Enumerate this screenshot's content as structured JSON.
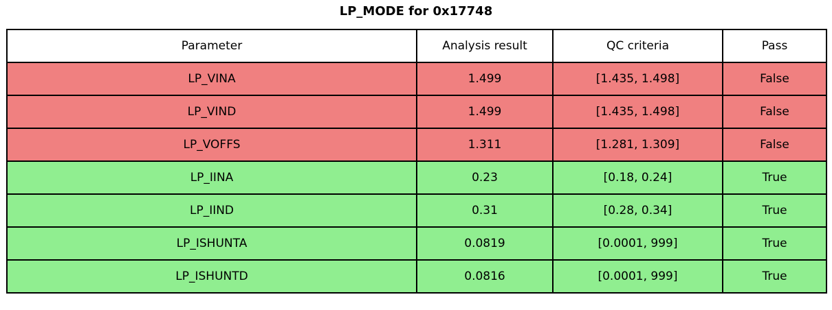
{
  "title": "LP_MODE for 0x17748",
  "colors": {
    "fail_row": "#f08080",
    "pass_row": "#90ee90",
    "header_bg": "#ffffff",
    "border": "#000000",
    "text": "#000000"
  },
  "table": {
    "headers": [
      "Parameter",
      "Analysis result",
      "QC criteria",
      "Pass"
    ],
    "rows": [
      {
        "parameter": "LP_VINA",
        "result": "1.499",
        "qc": "[1.435, 1.498]",
        "pass": "False"
      },
      {
        "parameter": "LP_VIND",
        "result": "1.499",
        "qc": "[1.435, 1.498]",
        "pass": "False"
      },
      {
        "parameter": "LP_VOFFS",
        "result": "1.311",
        "qc": "[1.281, 1.309]",
        "pass": "False"
      },
      {
        "parameter": "LP_IINA",
        "result": "0.23",
        "qc": "[0.18, 0.24]",
        "pass": "True"
      },
      {
        "parameter": "LP_IIND",
        "result": "0.31",
        "qc": "[0.28, 0.34]",
        "pass": "True"
      },
      {
        "parameter": "LP_ISHUNTA",
        "result": "0.0819",
        "qc": "[0.0001, 999]",
        "pass": "True"
      },
      {
        "parameter": "LP_ISHUNTD",
        "result": "0.0816",
        "qc": "[0.0001, 999]",
        "pass": "True"
      }
    ]
  },
  "chart_data": {
    "type": "table",
    "title": "LP_MODE for 0x17748",
    "columns": [
      "Parameter",
      "Analysis result",
      "QC criteria",
      "Pass"
    ],
    "rows": [
      [
        "LP_VINA",
        "1.499",
        "[1.435, 1.498]",
        "False"
      ],
      [
        "LP_VIND",
        "1.499",
        "[1.435, 1.498]",
        "False"
      ],
      [
        "LP_VOFFS",
        "1.311",
        "[1.281, 1.309]",
        "False"
      ],
      [
        "LP_IINA",
        "0.23",
        "[0.18, 0.24]",
        "True"
      ],
      [
        "LP_IIND",
        "0.31",
        "[0.28, 0.34]",
        "True"
      ],
      [
        "LP_ISHUNTA",
        "0.0819",
        "[0.0001, 999]",
        "True"
      ],
      [
        "LP_ISHUNTD",
        "0.0816",
        "[0.0001, 999]",
        "True"
      ]
    ]
  }
}
